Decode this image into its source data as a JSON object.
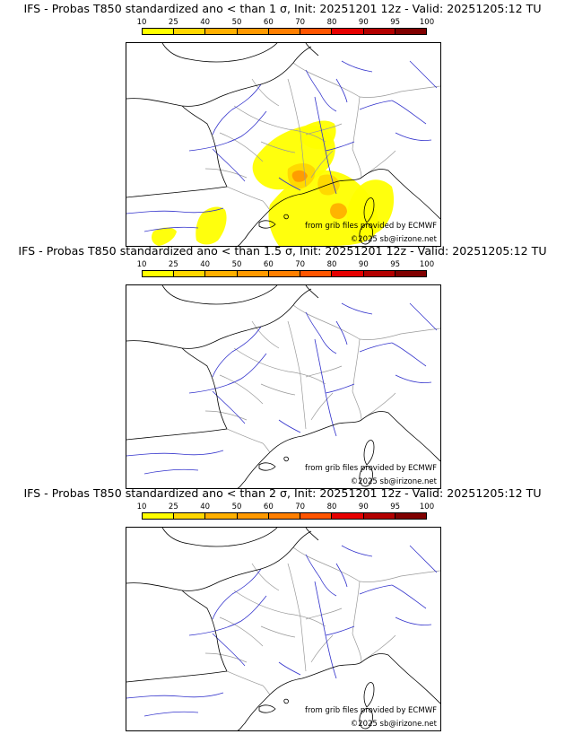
{
  "panels": [
    {
      "title": "IFS - Probas T850  standardized ano < than 1 σ, Init: 20251201 12z - Valid: 20251205:12 TU",
      "source": "from grib files provided by ECMWF",
      "copyright": "©2025 sb@irizone.net",
      "has_shading": true
    },
    {
      "title": "IFS - Probas T850  standardized ano < than 1.5 σ, Init: 20251201 12z - Valid: 20251205:12 TU",
      "source": "from grib files provided by ECMWF",
      "copyright": "©2025 sb@irizone.net",
      "has_shading": false
    },
    {
      "title": "IFS - Probas T850  standardized ano < than 2 σ, Init: 20251201 12z - Valid: 20251205:12 TU",
      "source": "from grib files provided by ECMWF",
      "copyright": "©2025 sb@irizone.net",
      "has_shading": false
    }
  ],
  "legend": {
    "ticks": [
      "10",
      "25",
      "40",
      "50",
      "60",
      "70",
      "80",
      "90",
      "95",
      "100"
    ],
    "colors": [
      "#ffff00",
      "#ffd700",
      "#ffb000",
      "#ff9900",
      "#ff7f00",
      "#ff5500",
      "#e60000",
      "#b30000",
      "#800000",
      "#4d0000"
    ]
  },
  "colors": {
    "coast": "#000000",
    "rivers": "#3333cc",
    "borders": "#9a9a9a"
  }
}
